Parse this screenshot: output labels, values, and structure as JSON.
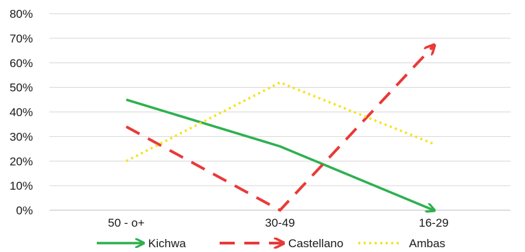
{
  "chart_data": {
    "type": "line",
    "title": "",
    "xlabel": "",
    "ylabel": "",
    "categories": [
      "50 - o+",
      "30-49",
      "16-29"
    ],
    "ylim": [
      0,
      80
    ],
    "y_ticks": [
      "0%",
      "10%",
      "20%",
      "30%",
      "40%",
      "50%",
      "60%",
      "70%",
      "80%"
    ],
    "grid": true,
    "legend_position": "bottom",
    "series": [
      {
        "name": "Kichwa",
        "values": [
          45,
          26,
          0
        ],
        "color": "#2eb04f",
        "style": "solid-arrow"
      },
      {
        "name": "Castellano",
        "values": [
          34,
          0,
          67
        ],
        "color": "#e83a37",
        "style": "dashed-arrow"
      },
      {
        "name": "Ambas",
        "values": [
          20,
          52,
          27
        ],
        "color": "#f5e21a",
        "style": "dotted"
      }
    ]
  }
}
